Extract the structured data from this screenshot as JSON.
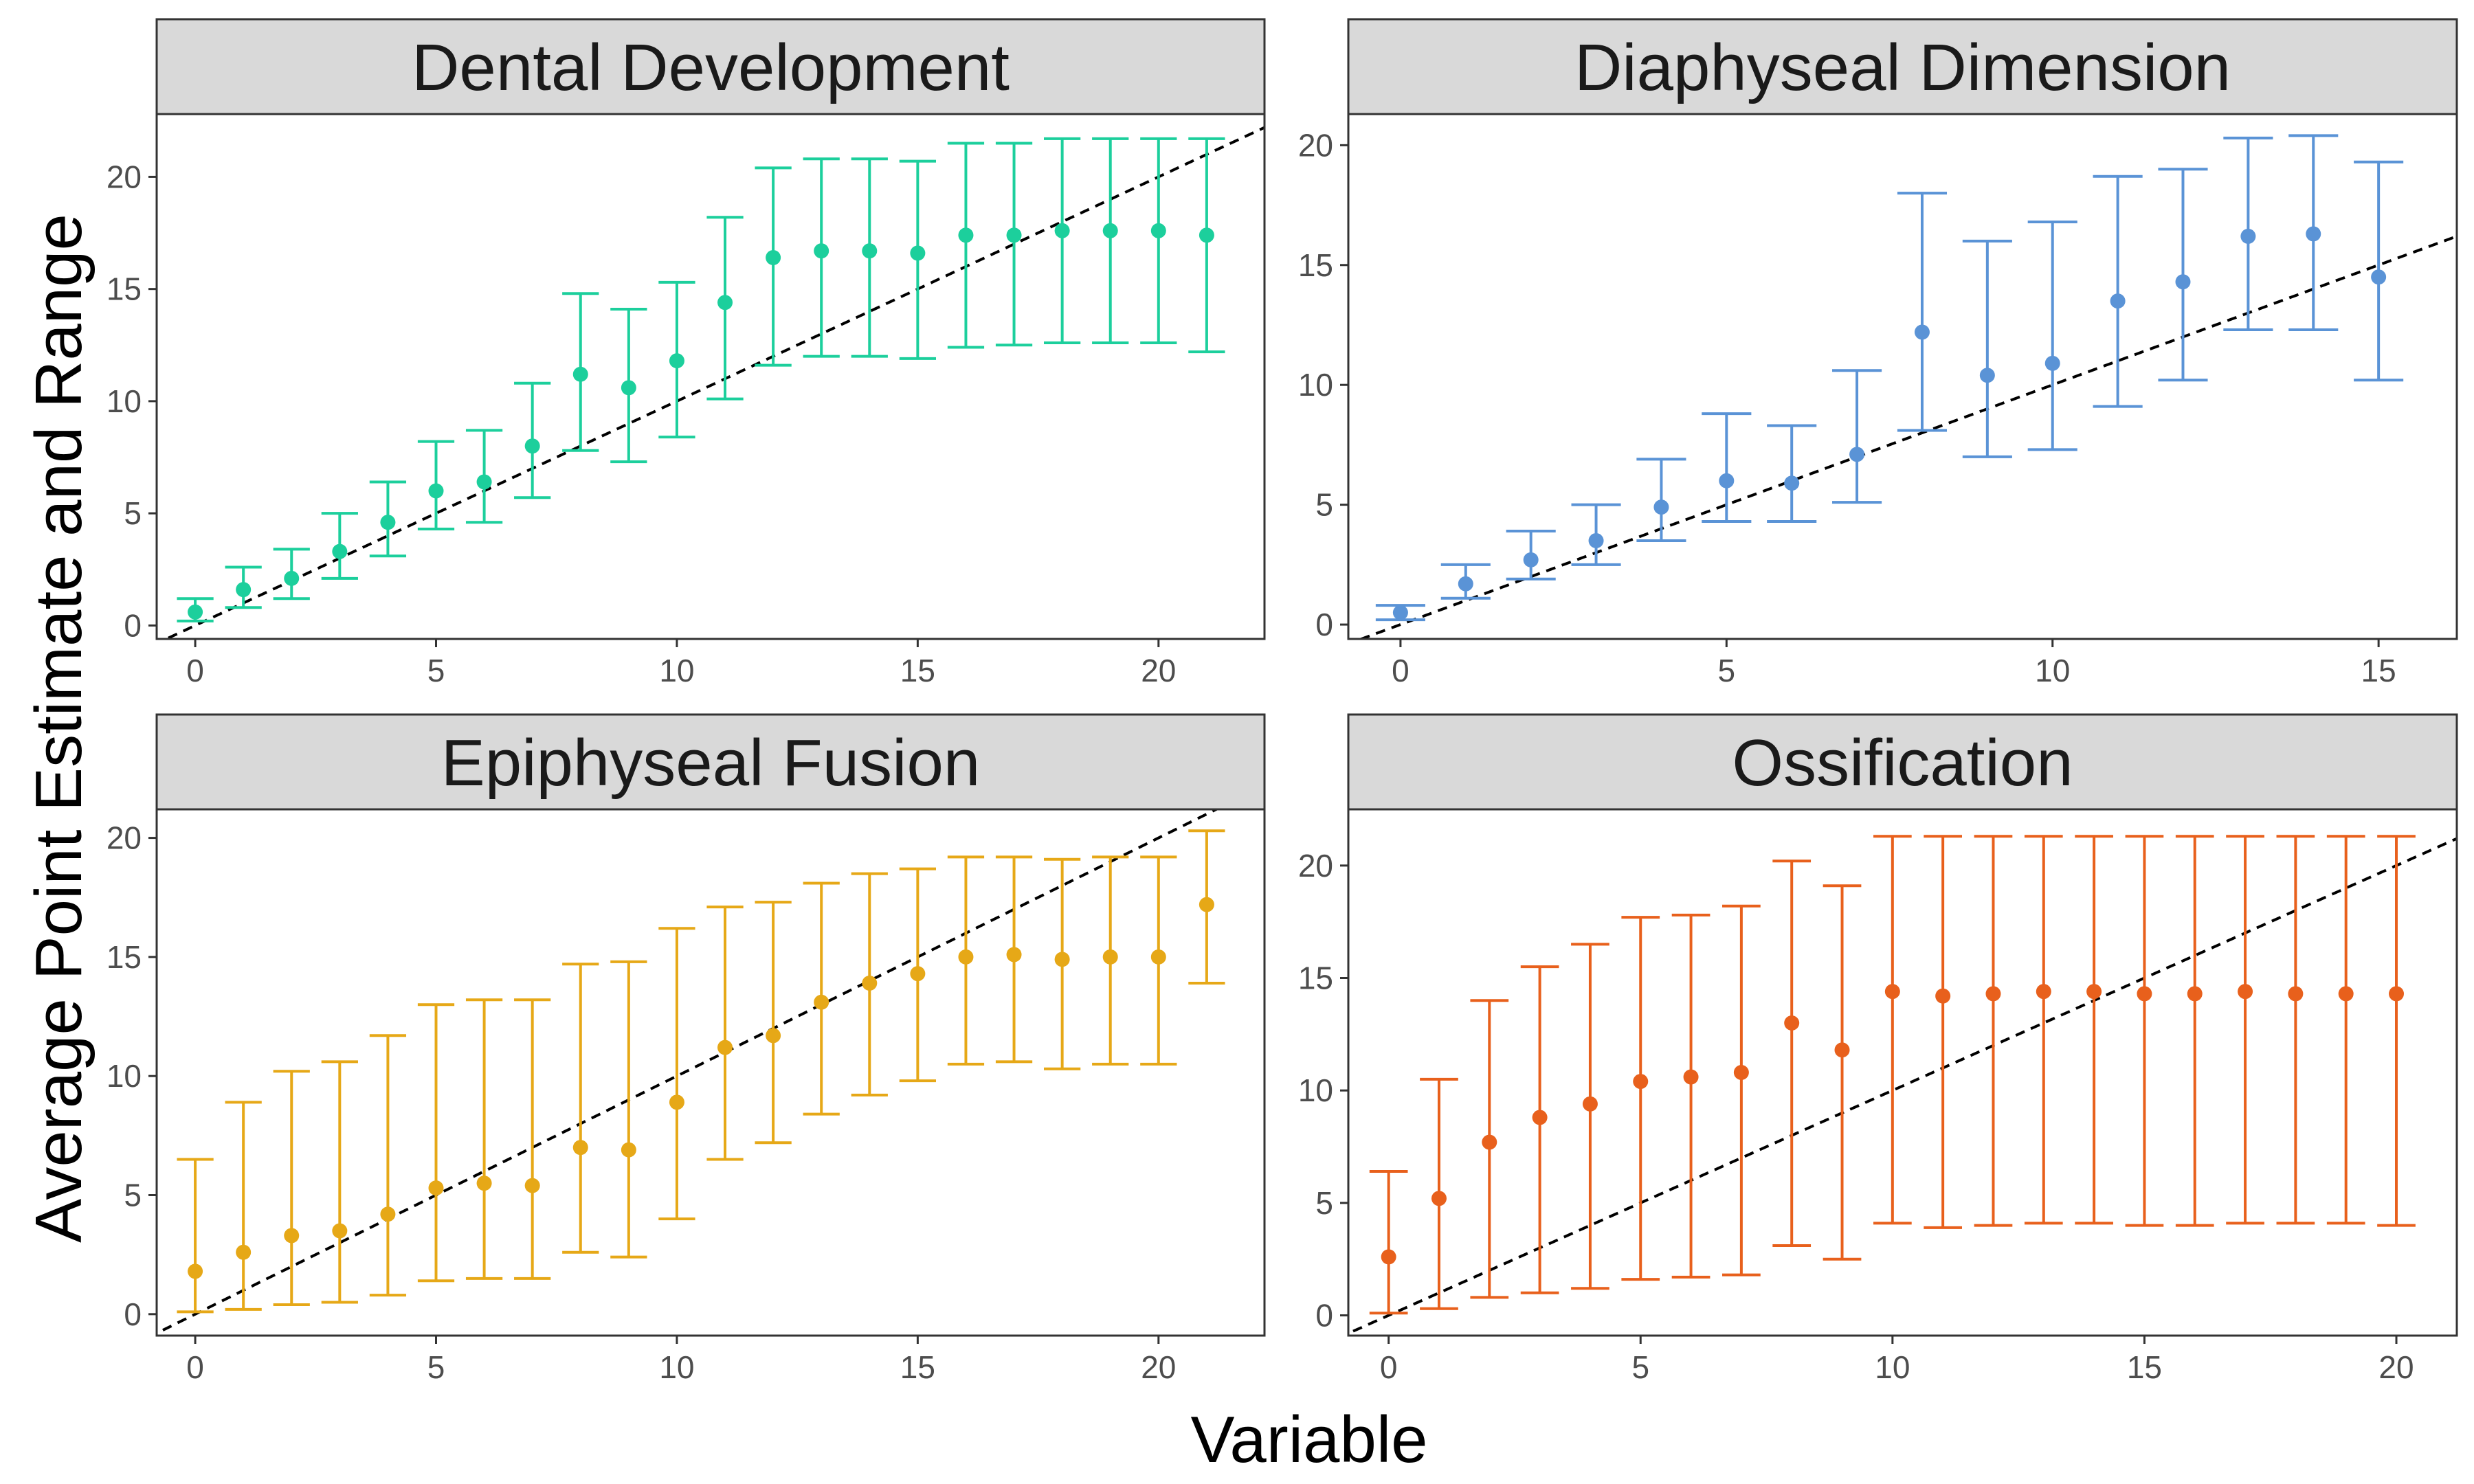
{
  "chart_data": {
    "type": "scatter",
    "xlabel": "Variable",
    "ylabel": "Average Point Estimate and Range",
    "panels": [
      {
        "title": "Dental Development",
        "color": "#1ccf9c",
        "xlim": [
          -0.8,
          22.2
        ],
        "ylim": [
          -0.6,
          22.8
        ],
        "xticks": [
          0,
          5,
          10,
          15,
          20
        ],
        "yticks": [
          0,
          5,
          10,
          15,
          20
        ],
        "x": [
          0,
          1,
          2,
          3,
          4,
          5,
          6,
          7,
          8,
          9,
          10,
          11,
          12,
          13,
          14,
          15,
          16,
          17,
          18,
          19,
          20,
          21
        ],
        "mean": [
          0.6,
          1.6,
          2.1,
          3.3,
          4.6,
          6.0,
          6.4,
          8.0,
          11.2,
          10.6,
          11.8,
          14.4,
          16.4,
          16.7,
          16.7,
          16.6,
          17.4,
          17.4,
          17.6,
          17.6,
          17.6,
          17.4
        ],
        "lower": [
          0.2,
          0.8,
          1.2,
          2.1,
          3.1,
          4.3,
          4.6,
          5.7,
          7.8,
          7.3,
          8.4,
          10.1,
          11.6,
          12.0,
          12.0,
          11.9,
          12.4,
          12.5,
          12.6,
          12.6,
          12.6,
          12.2
        ],
        "upper": [
          1.2,
          2.6,
          3.4,
          5.0,
          6.4,
          8.2,
          8.7,
          10.8,
          14.8,
          14.1,
          15.3,
          18.2,
          20.4,
          20.8,
          20.8,
          20.7,
          21.5,
          21.5,
          21.7,
          21.7,
          21.7,
          21.7
        ]
      },
      {
        "title": "Diaphyseal Dimension",
        "color": "#5a93d6",
        "xlim": [
          -0.8,
          16.2
        ],
        "ylim": [
          -0.6,
          21.3
        ],
        "xticks": [
          0,
          5,
          10,
          15
        ],
        "yticks": [
          0,
          5,
          10,
          15,
          20
        ],
        "x": [
          0,
          1,
          2,
          3,
          4,
          5,
          6,
          7,
          8,
          9,
          10,
          11,
          12,
          13,
          14,
          15
        ],
        "mean": [
          0.5,
          1.7,
          2.7,
          3.5,
          4.9,
          6.0,
          5.9,
          7.1,
          12.2,
          10.4,
          10.9,
          13.5,
          14.3,
          16.2,
          16.3,
          14.5
        ],
        "lower": [
          0.2,
          1.1,
          1.9,
          2.5,
          3.5,
          4.3,
          4.3,
          5.1,
          8.1,
          7.0,
          7.3,
          9.1,
          10.2,
          12.3,
          12.3,
          10.2
        ],
        "upper": [
          0.8,
          2.5,
          3.9,
          5.0,
          6.9,
          8.8,
          8.3,
          10.6,
          18.0,
          16.0,
          16.8,
          18.7,
          19.0,
          20.3,
          20.4,
          19.3
        ]
      },
      {
        "title": "Epiphyseal Fusion",
        "color": "#e6a817",
        "xlim": [
          -0.8,
          22.2
        ],
        "ylim": [
          -0.9,
          21.2
        ],
        "xticks": [
          0,
          5,
          10,
          15,
          20
        ],
        "yticks": [
          0,
          5,
          10,
          15,
          20
        ],
        "x": [
          0,
          1,
          2,
          3,
          4,
          5,
          6,
          7,
          8,
          9,
          10,
          11,
          12,
          13,
          14,
          15,
          16,
          17,
          18,
          19,
          20,
          21
        ],
        "mean": [
          1.8,
          2.6,
          3.3,
          3.5,
          4.2,
          5.3,
          5.5,
          5.4,
          7.0,
          6.9,
          8.9,
          11.2,
          11.7,
          13.1,
          13.9,
          14.3,
          15.0,
          15.1,
          14.9,
          15.0,
          15.0,
          17.2
        ],
        "lower": [
          0.1,
          0.2,
          0.4,
          0.5,
          0.8,
          1.4,
          1.5,
          1.5,
          2.6,
          2.4,
          4.0,
          6.5,
          7.2,
          8.4,
          9.2,
          9.8,
          10.5,
          10.6,
          10.3,
          10.5,
          10.5,
          13.9
        ],
        "upper": [
          6.5,
          8.9,
          10.2,
          10.6,
          11.7,
          13.0,
          13.2,
          13.2,
          14.7,
          14.8,
          16.2,
          17.1,
          17.3,
          18.1,
          18.5,
          18.7,
          19.2,
          19.2,
          19.1,
          19.2,
          19.2,
          20.3
        ]
      },
      {
        "title": "Ossification",
        "color": "#e8601c",
        "xlim": [
          -0.8,
          21.2
        ],
        "ylim": [
          -0.9,
          22.5
        ],
        "xticks": [
          0,
          5,
          10,
          15,
          20
        ],
        "yticks": [
          0,
          5,
          10,
          15,
          20
        ],
        "x": [
          0,
          1,
          2,
          3,
          4,
          5,
          6,
          7,
          8,
          9,
          10,
          11,
          12,
          13,
          14,
          15,
          16,
          17,
          18,
          19,
          20
        ],
        "mean": [
          2.6,
          5.2,
          7.7,
          8.8,
          9.4,
          10.4,
          10.6,
          10.8,
          13.0,
          11.8,
          14.4,
          14.2,
          14.3,
          14.4,
          14.4,
          14.3,
          14.3,
          14.4,
          14.3,
          14.3,
          14.3
        ],
        "lower": [
          0.1,
          0.3,
          0.8,
          1.0,
          1.2,
          1.6,
          1.7,
          1.8,
          3.1,
          2.5,
          4.1,
          3.9,
          4.0,
          4.1,
          4.1,
          4.0,
          4.0,
          4.1,
          4.1,
          4.1,
          4.0
        ],
        "upper": [
          6.4,
          10.5,
          14.0,
          15.5,
          16.5,
          17.7,
          17.8,
          18.2,
          20.2,
          19.1,
          21.3,
          21.3,
          21.3,
          21.3,
          21.3,
          21.3,
          21.3,
          21.3,
          21.3,
          21.3,
          21.3
        ]
      }
    ]
  }
}
